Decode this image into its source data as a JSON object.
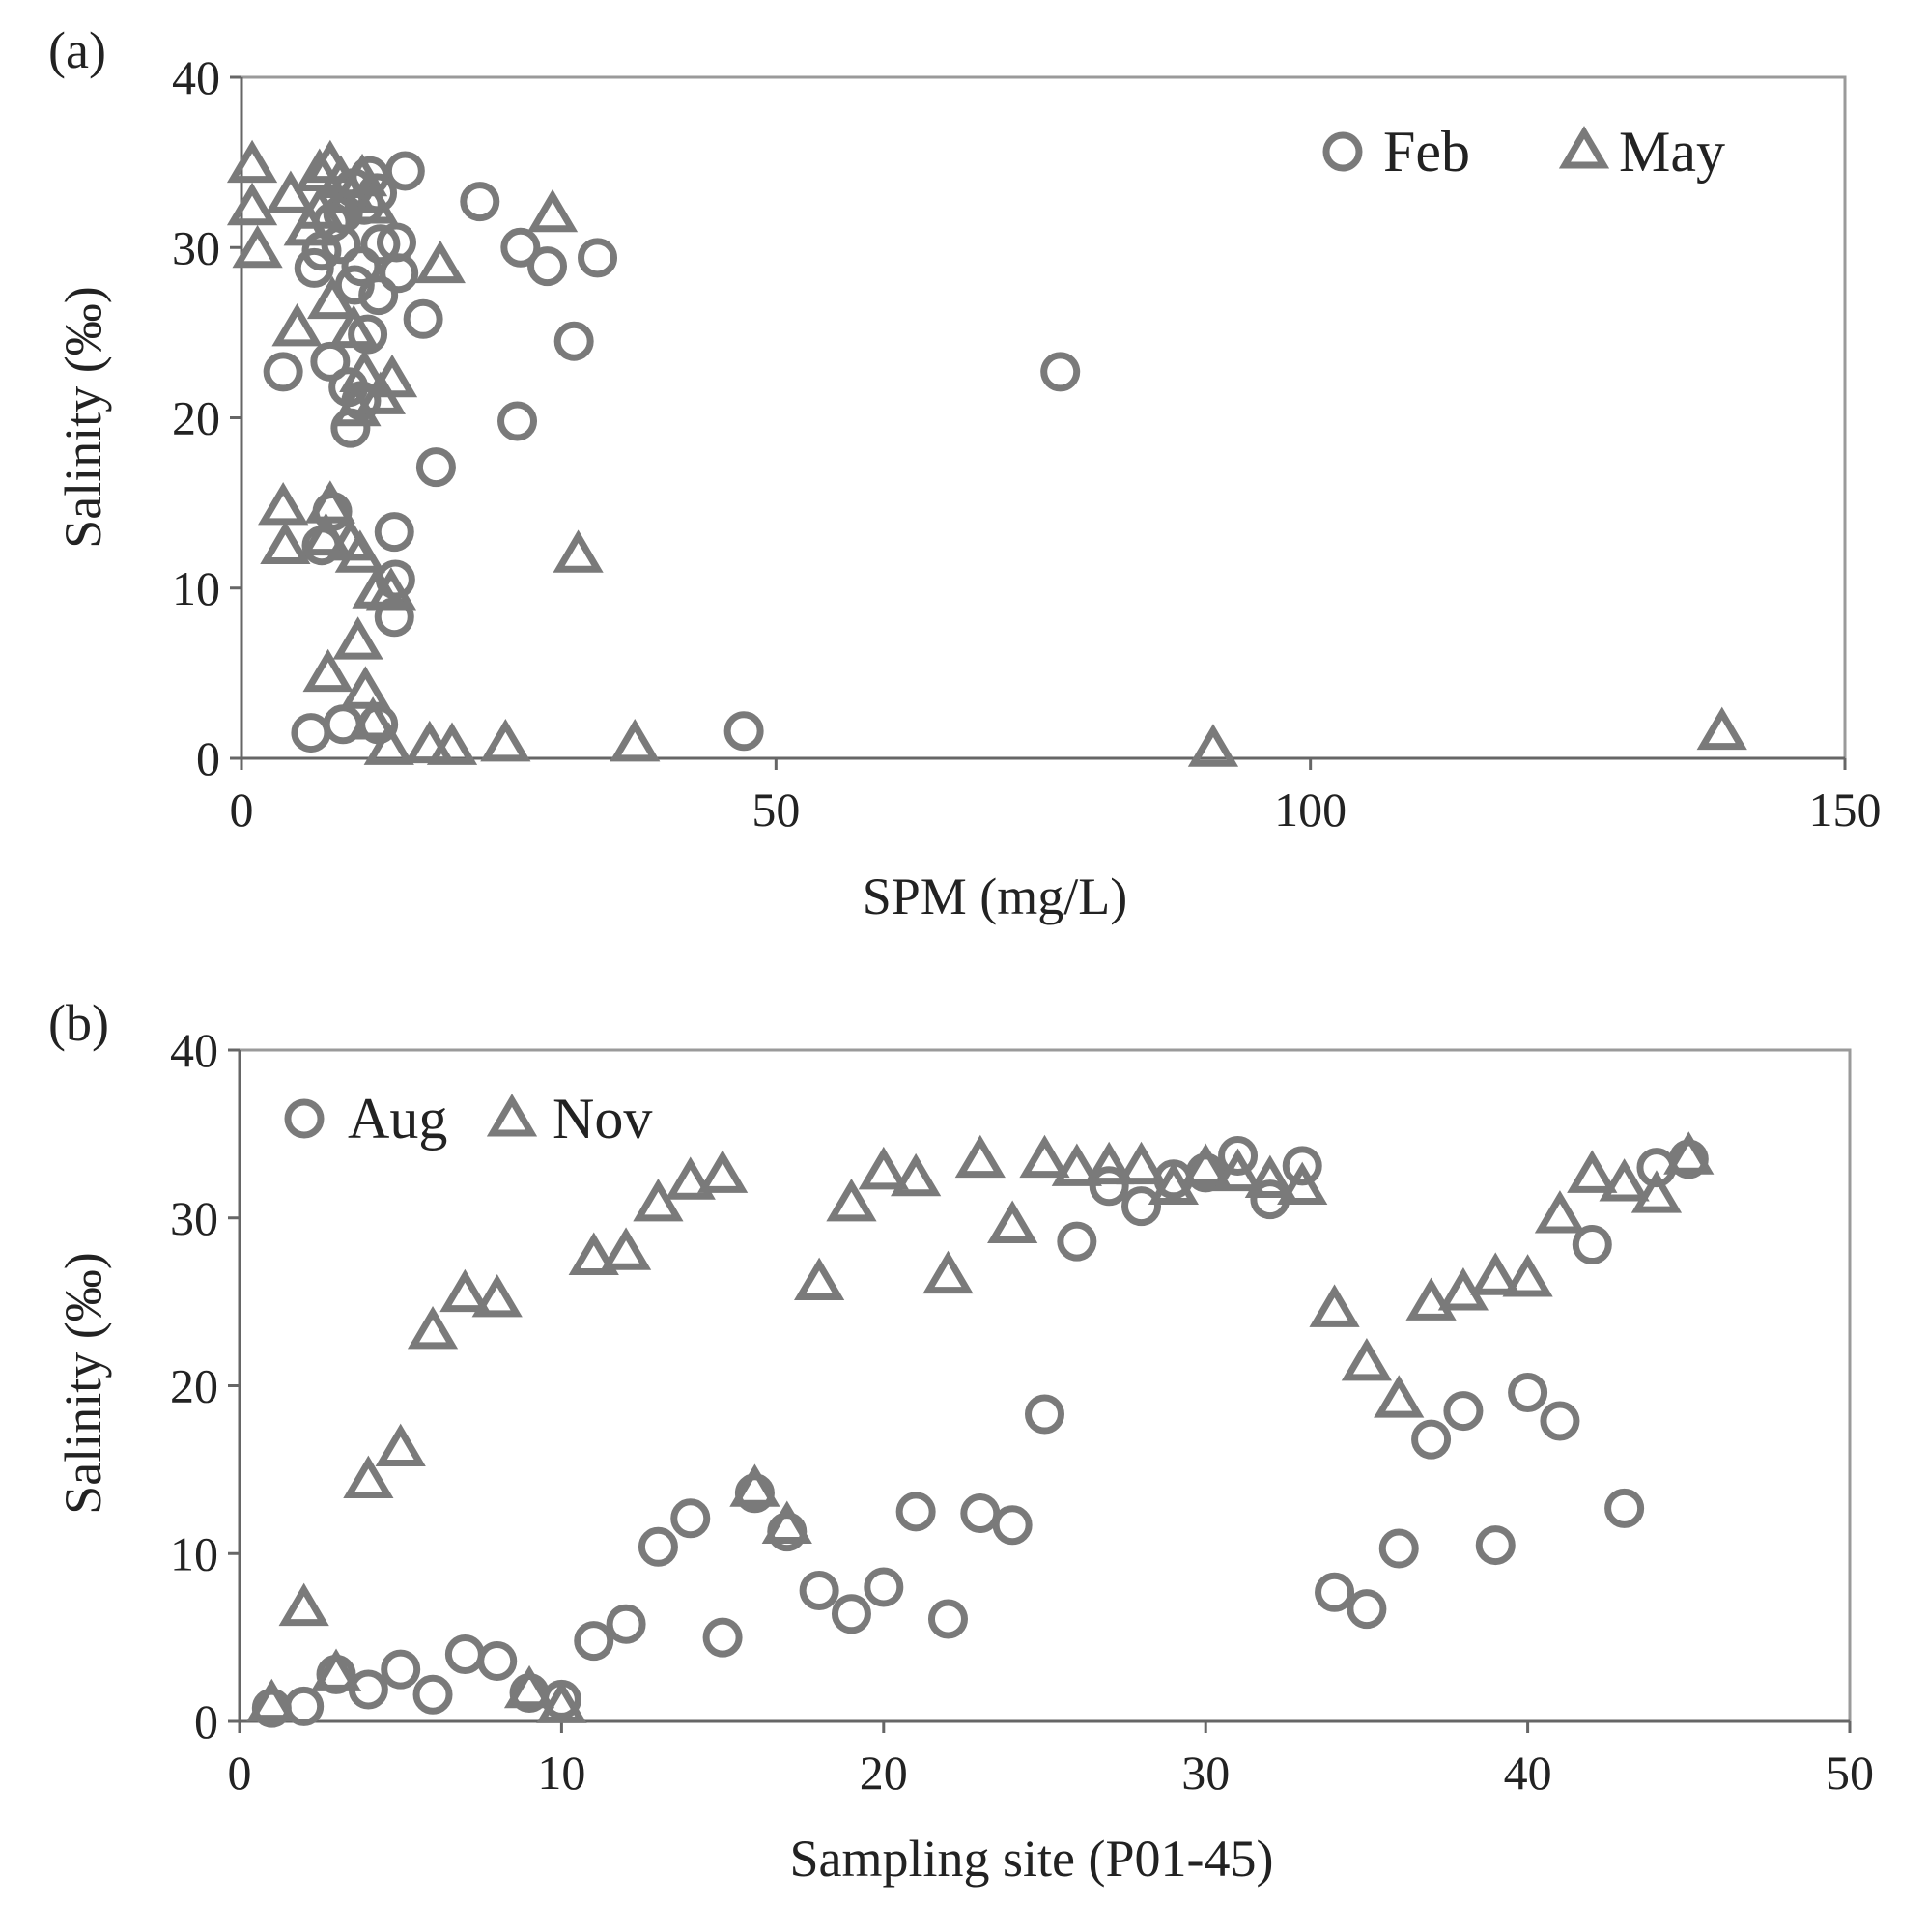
{
  "chart_data": [
    {
      "panel_label": "(a)",
      "type": "scatter",
      "xlabel": "SPM (mg/L)",
      "ylabel": "Salinity (‰)",
      "xlim": [
        0,
        150
      ],
      "ylim": [
        0,
        40
      ],
      "xticks": [
        0,
        50,
        100,
        150
      ],
      "yticks": [
        0,
        10,
        20,
        30,
        40
      ],
      "grid": false,
      "legend_position": "top-right",
      "series": [
        {
          "name": "Feb",
          "marker": "circle",
          "points": [
            [
              6.5,
              1.5
            ],
            [
              9.5,
              2.0
            ],
            [
              12.8,
              2.0
            ],
            [
              47.0,
              1.6
            ],
            [
              14.3,
              8.3
            ],
            [
              14.4,
              10.5
            ],
            [
              14.3,
              13.3
            ],
            [
              7.5,
              12.5
            ],
            [
              8.5,
              14.5
            ],
            [
              18.2,
              17.1
            ],
            [
              10.2,
              19.4
            ],
            [
              25.8,
              19.8
            ],
            [
              3.9,
              22.7
            ],
            [
              10.0,
              21.8
            ],
            [
              11.2,
              21.0
            ],
            [
              8.3,
              23.3
            ],
            [
              11.8,
              24.9
            ],
            [
              17.0,
              25.8
            ],
            [
              31.1,
              24.5
            ],
            [
              12.8,
              27.2
            ],
            [
              10.6,
              27.8
            ],
            [
              14.7,
              28.5
            ],
            [
              6.8,
              28.8
            ],
            [
              11.2,
              28.9
            ],
            [
              7.5,
              29.8
            ],
            [
              9.3,
              30.2
            ],
            [
              13.0,
              30.2
            ],
            [
              14.5,
              30.3
            ],
            [
              26.1,
              30.0
            ],
            [
              28.6,
              28.9
            ],
            [
              33.3,
              29.4
            ],
            [
              22.3,
              32.7
            ],
            [
              15.3,
              34.5
            ],
            [
              12.0,
              34.2
            ],
            [
              12.7,
              33.2
            ],
            [
              8.5,
              31.5
            ],
            [
              9.5,
              32.0
            ],
            [
              11.5,
              32.5
            ],
            [
              10.5,
              33.5
            ],
            [
              76.6,
              22.7
            ]
          ]
        },
        {
          "name": "May",
          "marker": "triangle",
          "points": [
            [
              1.0,
              34.8
            ],
            [
              1.0,
              32.3
            ],
            [
              1.5,
              29.8
            ],
            [
              4.6,
              33.0
            ],
            [
              6.3,
              31.1
            ],
            [
              7.3,
              32.1
            ],
            [
              7.3,
              34.3
            ],
            [
              8.3,
              34.8
            ],
            [
              9.3,
              33.9
            ],
            [
              10.3,
              33.0
            ],
            [
              11.3,
              34.0
            ],
            [
              12.3,
              32.4
            ],
            [
              18.6,
              28.9
            ],
            [
              29.1,
              31.9
            ],
            [
              5.2,
              25.2
            ],
            [
              8.5,
              26.8
            ],
            [
              10.5,
              25.1
            ],
            [
              11.5,
              22.5
            ],
            [
              13.0,
              21.2
            ],
            [
              14.1,
              22.2
            ],
            [
              10.7,
              20.5
            ],
            [
              3.9,
              14.7
            ],
            [
              4.1,
              12.4
            ],
            [
              8.3,
              14.8
            ],
            [
              7.9,
              12.9
            ],
            [
              10.2,
              12.6
            ],
            [
              11.1,
              11.9
            ],
            [
              31.5,
              11.9
            ],
            [
              12.7,
              9.8
            ],
            [
              14.0,
              9.7
            ],
            [
              8.1,
              4.9
            ],
            [
              10.9,
              6.8
            ],
            [
              11.6,
              3.9
            ],
            [
              12.3,
              2.1
            ],
            [
              13.8,
              0.6
            ],
            [
              17.6,
              0.7
            ],
            [
              19.7,
              0.6
            ],
            [
              24.7,
              0.8
            ],
            [
              36.8,
              0.8
            ],
            [
              90.9,
              0.5
            ],
            [
              138.5,
              1.5
            ]
          ]
        }
      ]
    },
    {
      "panel_label": "(b)",
      "type": "scatter",
      "xlabel": "Sampling site (P01-45)",
      "ylabel": "Salinity (‰)",
      "xlim": [
        0,
        50
      ],
      "ylim": [
        0,
        40
      ],
      "xticks": [
        0,
        10,
        20,
        30,
        40,
        50
      ],
      "yticks": [
        0,
        10,
        20,
        30,
        40
      ],
      "grid": false,
      "legend_position": "top-left",
      "series": [
        {
          "name": "Aug",
          "marker": "circle",
          "points": [
            [
              1,
              0.8
            ],
            [
              2,
              0.9
            ],
            [
              3,
              2.8
            ],
            [
              4,
              1.9
            ],
            [
              5,
              3.1
            ],
            [
              6,
              1.6
            ],
            [
              7,
              4.0
            ],
            [
              8,
              3.6
            ],
            [
              9,
              1.7
            ],
            [
              10,
              1.3
            ],
            [
              11,
              4.8
            ],
            [
              12,
              5.8
            ],
            [
              13,
              10.4
            ],
            [
              14,
              12.1
            ],
            [
              15,
              5.0
            ],
            [
              16,
              13.6
            ],
            [
              17,
              11.3
            ],
            [
              18,
              7.8
            ],
            [
              19,
              6.4
            ],
            [
              20,
              8.0
            ],
            [
              21,
              12.5
            ],
            [
              22,
              6.1
            ],
            [
              23,
              12.4
            ],
            [
              24,
              11.7
            ],
            [
              25,
              18.3
            ],
            [
              26,
              28.6
            ],
            [
              27,
              31.9
            ],
            [
              28,
              30.7
            ],
            [
              29,
              32.3
            ],
            [
              30,
              32.7
            ],
            [
              31,
              33.7
            ],
            [
              32,
              31.1
            ],
            [
              33,
              33.1
            ],
            [
              34,
              7.7
            ],
            [
              35,
              6.7
            ],
            [
              36,
              10.3
            ],
            [
              37,
              16.8
            ],
            [
              38,
              18.5
            ],
            [
              39,
              10.5
            ],
            [
              40,
              19.6
            ],
            [
              41,
              17.9
            ],
            [
              42,
              28.4
            ],
            [
              43,
              12.7
            ],
            [
              44,
              33.0
            ],
            [
              45,
              33.5
            ]
          ]
        },
        {
          "name": "Nov",
          "marker": "triangle",
          "points": [
            [
              1,
              1.0
            ],
            [
              2,
              6.7
            ],
            [
              3,
              2.8
            ],
            [
              4,
              14.3
            ],
            [
              5,
              16.2
            ],
            [
              6,
              23.2
            ],
            [
              7,
              25.4
            ],
            [
              8,
              25.1
            ],
            [
              9,
              1.8
            ],
            [
              10,
              0.9
            ],
            [
              11,
              27.6
            ],
            [
              12,
              27.9
            ],
            [
              13,
              30.8
            ],
            [
              14,
              32.1
            ],
            [
              15,
              32.5
            ],
            [
              16,
              13.8
            ],
            [
              17,
              11.6
            ],
            [
              18,
              26.1
            ],
            [
              19,
              30.8
            ],
            [
              20,
              32.7
            ],
            [
              21,
              32.3
            ],
            [
              22,
              26.5
            ],
            [
              23,
              33.4
            ],
            [
              24,
              29.5
            ],
            [
              25,
              33.4
            ],
            [
              26,
              32.9
            ],
            [
              27,
              33.0
            ],
            [
              28,
              33.0
            ],
            [
              29,
              31.8
            ],
            [
              30,
              32.9
            ],
            [
              31,
              32.6
            ],
            [
              32,
              32.2
            ],
            [
              33,
              31.8
            ],
            [
              34,
              24.5
            ],
            [
              35,
              21.3
            ],
            [
              36,
              19.1
            ],
            [
              37,
              24.9
            ],
            [
              38,
              25.5
            ],
            [
              39,
              26.4
            ],
            [
              40,
              26.3
            ],
            [
              41,
              30.1
            ],
            [
              42,
              32.5
            ],
            [
              43,
              32.0
            ],
            [
              44,
              31.3
            ],
            [
              45,
              33.6
            ]
          ]
        }
      ]
    }
  ]
}
